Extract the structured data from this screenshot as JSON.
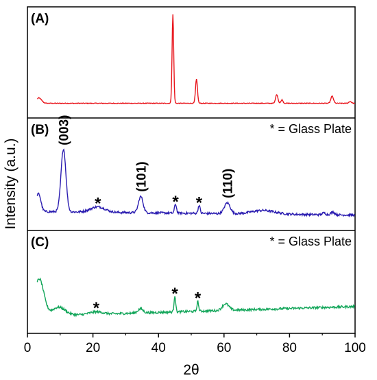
{
  "chart_data": {
    "type": "line",
    "xlabel": "2θ",
    "ylabel": "Intensity (a.u.)",
    "xlim": [
      0,
      100
    ],
    "xticks": [
      "0",
      "20",
      "40",
      "60",
      "80",
      "100"
    ],
    "grid": false,
    "colors": {
      "A": "#e8141b",
      "B": "#2a1cb0",
      "C": "#13a65a"
    },
    "panels": [
      {
        "label": "(A)",
        "note": "",
        "baseline": 0.015,
        "peaks": [
          [
            44.4,
            1.0,
            0.25
          ],
          [
            51.6,
            0.27,
            0.3
          ],
          [
            76.1,
            0.1,
            0.35
          ],
          [
            77.7,
            0.04,
            0.3
          ],
          [
            93.0,
            0.08,
            0.4
          ],
          [
            98.5,
            0.02,
            0.4
          ]
        ],
        "features": [
          [
            3.5,
            0.06,
            0.8
          ]
        ],
        "slope": 0,
        "noise": 0.004,
        "annotations": []
      },
      {
        "label": "(B)",
        "note": "* = Glass Plate",
        "baseline": 0.06,
        "peaks": [
          [
            11.0,
            0.7,
            0.75
          ],
          [
            34.6,
            0.18,
            0.7
          ],
          [
            45.2,
            0.1,
            0.3
          ],
          [
            52.4,
            0.09,
            0.3
          ],
          [
            61.0,
            0.12,
            0.9
          ],
          [
            90.5,
            0.02,
            0.5
          ],
          [
            93.2,
            0.03,
            0.6
          ]
        ],
        "features": [
          [
            3.4,
            0.2,
            0.7
          ],
          [
            21.5,
            0.06,
            2.2
          ],
          [
            72.0,
            0.04,
            3.5
          ]
        ],
        "slope": -0.0004,
        "noise": 0.012,
        "annotations": [
          {
            "text": "(003)",
            "x": 11.0,
            "kind": "hkl"
          },
          {
            "text": "(101)",
            "x": 34.6,
            "kind": "hkl"
          },
          {
            "text": "(110)",
            "x": 61.0,
            "kind": "hkl"
          },
          {
            "text": "*",
            "x": 21.5,
            "kind": "star"
          },
          {
            "text": "*",
            "x": 45.2,
            "kind": "star"
          },
          {
            "text": "*",
            "x": 52.4,
            "kind": "star"
          }
        ]
      },
      {
        "label": "(C)",
        "note": "* = Glass Plate",
        "baseline": 0.06,
        "peaks": [
          [
            34.5,
            0.05,
            0.8
          ],
          [
            45.0,
            0.2,
            0.25
          ],
          [
            52.0,
            0.12,
            0.25
          ],
          [
            60.5,
            0.08,
            1.0
          ]
        ],
        "features": [
          [
            3.6,
            0.45,
            1.4
          ],
          [
            9.5,
            0.1,
            2.0
          ],
          [
            21.0,
            0.03,
            2.0
          ]
        ],
        "slope": 0.0012,
        "noise": 0.014,
        "annotations": [
          {
            "text": "*",
            "x": 21.0,
            "kind": "star"
          },
          {
            "text": "*",
            "x": 45.0,
            "kind": "star"
          },
          {
            "text": "*",
            "x": 52.0,
            "kind": "star"
          }
        ]
      }
    ]
  }
}
